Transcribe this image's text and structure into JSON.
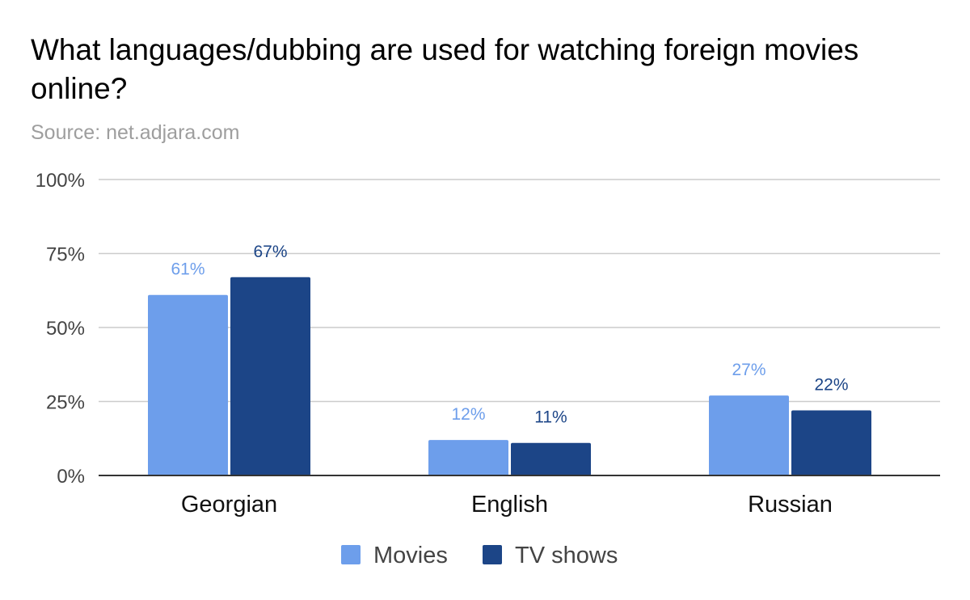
{
  "title": "What languages/dubbing are used for watching foreign movies online?",
  "subtitle": "Source: net.adjara.com",
  "colors": {
    "movies": "#6d9eeb",
    "tv_shows": "#1c4587",
    "grid": "#cccccc",
    "axis": "#333333"
  },
  "chart_data": {
    "type": "bar",
    "title": "What languages/dubbing are used for watching foreign movies online?",
    "subtitle": "Source: net.adjara.com",
    "categories": [
      "Georgian",
      "English",
      "Russian"
    ],
    "series": [
      {
        "name": "Movies",
        "values": [
          61,
          12,
          27
        ],
        "labels": [
          "61%",
          "12%",
          "27%"
        ],
        "color": "#6d9eeb"
      },
      {
        "name": "TV shows",
        "values": [
          67,
          11,
          22
        ],
        "labels": [
          "67%",
          "11%",
          "22%"
        ],
        "color": "#1c4587"
      }
    ],
    "ylim": [
      0,
      100
    ],
    "yticks": [
      0,
      25,
      50,
      75,
      100
    ],
    "ytick_labels": [
      "0%",
      "25%",
      "50%",
      "75%",
      "100%"
    ],
    "xlabel": "",
    "ylabel": "",
    "grid": true,
    "legend_position": "bottom"
  }
}
